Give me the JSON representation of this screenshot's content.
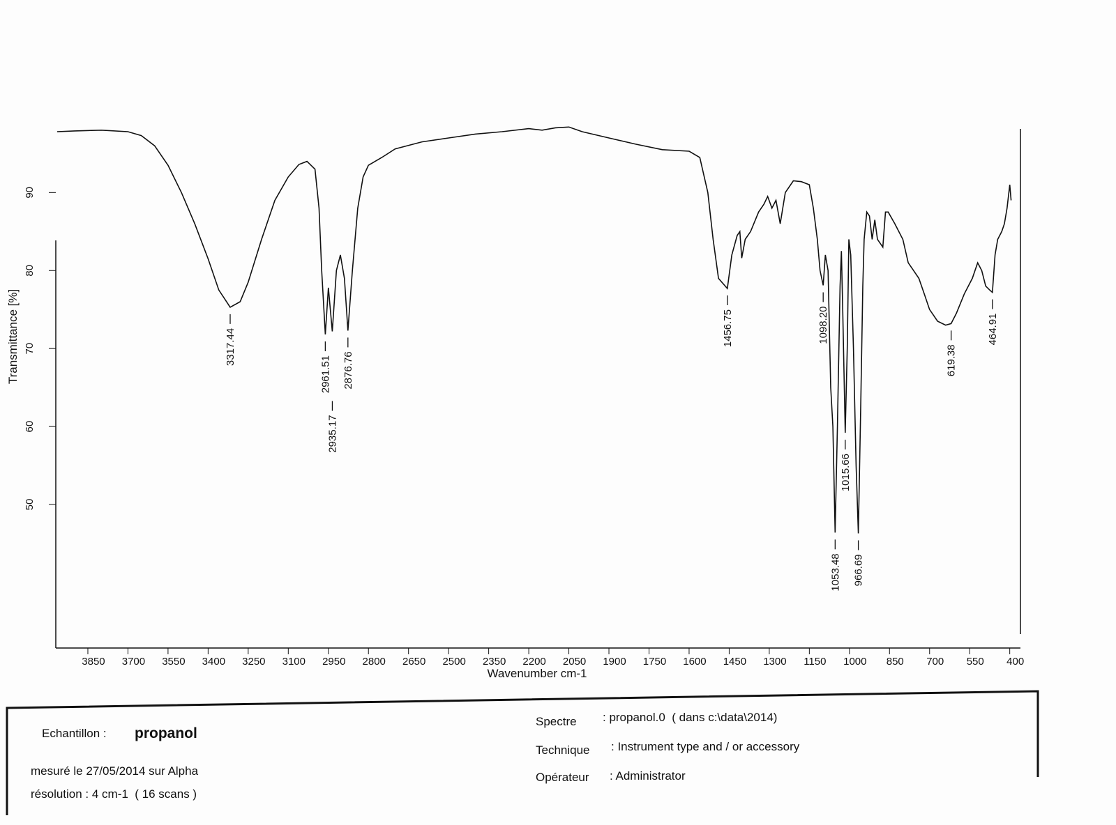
{
  "chart_data": {
    "type": "line",
    "xlabel": "Wavenumber cm-1",
    "ylabel": "Transmittance [%]",
    "color": "#111111",
    "xlim": [
      3970,
      360
    ],
    "ylim": [
      31.6,
      99.5
    ],
    "xticks": [
      3850,
      3700,
      3550,
      3400,
      3250,
      3100,
      2950,
      2800,
      2650,
      2500,
      2350,
      2200,
      2050,
      1900,
      1750,
      1600,
      1450,
      1300,
      1150,
      1000,
      850,
      700,
      550,
      400
    ],
    "yticks": [
      50,
      60,
      70,
      80,
      90
    ],
    "x": [
      3965,
      3900,
      3800,
      3700,
      3650,
      3600,
      3550,
      3500,
      3450,
      3400,
      3360,
      3317.44,
      3280,
      3250,
      3200,
      3150,
      3100,
      3060,
      3030,
      3000,
      2985,
      2975,
      2961.51,
      2950,
      2935.17,
      2920,
      2905,
      2890,
      2876.76,
      2860,
      2840,
      2820,
      2800,
      2750,
      2700,
      2600,
      2500,
      2400,
      2300,
      2200,
      2150,
      2100,
      2050,
      2000,
      1900,
      1800,
      1700,
      1600,
      1560,
      1530,
      1510,
      1490,
      1456.75,
      1440,
      1420,
      1410,
      1403,
      1390,
      1370,
      1340,
      1320,
      1306,
      1290,
      1275,
      1259,
      1240,
      1210,
      1180,
      1150,
      1135,
      1120,
      1110,
      1098.2,
      1090,
      1080,
      1070,
      1062,
      1053.48,
      1045,
      1035,
      1030,
      1025,
      1015.66,
      1008,
      1002,
      995,
      985,
      975,
      966.69,
      958,
      950,
      945,
      935,
      925,
      915,
      905,
      895,
      875,
      865,
      855,
      830,
      800,
      780,
      760,
      740,
      720,
      700,
      670,
      640,
      619.38,
      600,
      570,
      540,
      520,
      505,
      490,
      475,
      464.91,
      455,
      445,
      430,
      420,
      410,
      400,
      395
    ],
    "values": [
      97.8,
      97.9,
      98.0,
      97.8,
      97.3,
      96.0,
      93.5,
      90.0,
      86.0,
      81.5,
      77.5,
      75.3,
      76.0,
      78.5,
      84.0,
      89.0,
      92.0,
      93.6,
      94.0,
      93.0,
      88.0,
      80.0,
      71.8,
      77.8,
      72.2,
      80.0,
      82.0,
      79.0,
      72.3,
      80.0,
      88.0,
      92.0,
      93.5,
      94.5,
      95.6,
      96.5,
      97.0,
      97.5,
      97.8,
      98.2,
      98.0,
      98.3,
      98.4,
      97.8,
      97.0,
      96.2,
      95.5,
      95.3,
      94.5,
      90.0,
      84.0,
      79.0,
      77.7,
      82.0,
      84.5,
      85.0,
      81.6,
      84.0,
      85.0,
      87.5,
      88.5,
      89.5,
      88.0,
      89.0,
      86.0,
      90.0,
      91.5,
      91.4,
      91.0,
      88.0,
      84.0,
      80.0,
      78.1,
      82.0,
      80.0,
      65.0,
      60.0,
      46.4,
      60.0,
      78.0,
      82.5,
      75.0,
      59.2,
      70.0,
      84.0,
      82.0,
      70.0,
      55.0,
      46.3,
      62.0,
      78.0,
      84.0,
      87.5,
      87.0,
      84.0,
      86.5,
      84.0,
      83.0,
      87.5,
      87.5,
      86.0,
      84.0,
      81.0,
      80.0,
      79.0,
      77.0,
      75.0,
      73.5,
      73.0,
      73.2,
      74.5,
      77.0,
      79.0,
      81.0,
      80.0,
      78.0,
      77.5,
      77.2,
      82.0,
      84.0,
      85.0,
      86.0,
      88.0,
      91.0,
      89.0
    ],
    "annotations": [
      {
        "x": 3317.44,
        "y": 75.3,
        "label": "3317.44"
      },
      {
        "x": 2961.51,
        "y": 71.8,
        "label": "2961.51"
      },
      {
        "x": 2935.17,
        "y": 72.2,
        "label": "2935.17"
      },
      {
        "x": 2876.76,
        "y": 72.3,
        "label": "2876.76"
      },
      {
        "x": 1456.75,
        "y": 77.7,
        "label": "1456.75"
      },
      {
        "x": 1098.2,
        "y": 78.1,
        "label": "1098.20"
      },
      {
        "x": 1053.48,
        "y": 46.4,
        "label": "1053.48"
      },
      {
        "x": 1015.66,
        "y": 59.2,
        "label": "1015.66"
      },
      {
        "x": 966.69,
        "y": 46.3,
        "label": "966.69"
      },
      {
        "x": 619.38,
        "y": 73.2,
        "label": "619.38"
      },
      {
        "x": 464.91,
        "y": 77.2,
        "label": "464.91"
      }
    ]
  },
  "info": {
    "sample_label": "Echantillon :",
    "sample": "propanol",
    "measured": "mesuré le 27/05/2014 sur Alpha",
    "resolution": "résolution : 4 cm-1  ( 16 scans )",
    "spectrum_label": "Spectre",
    "spectrum": ": propanol.0  ( dans c:\\data\\2014)",
    "technique_label": "Technique",
    "technique": ": Instrument type and / or accessory",
    "operator_label": "Opérateur",
    "operator": ": Administrator"
  }
}
